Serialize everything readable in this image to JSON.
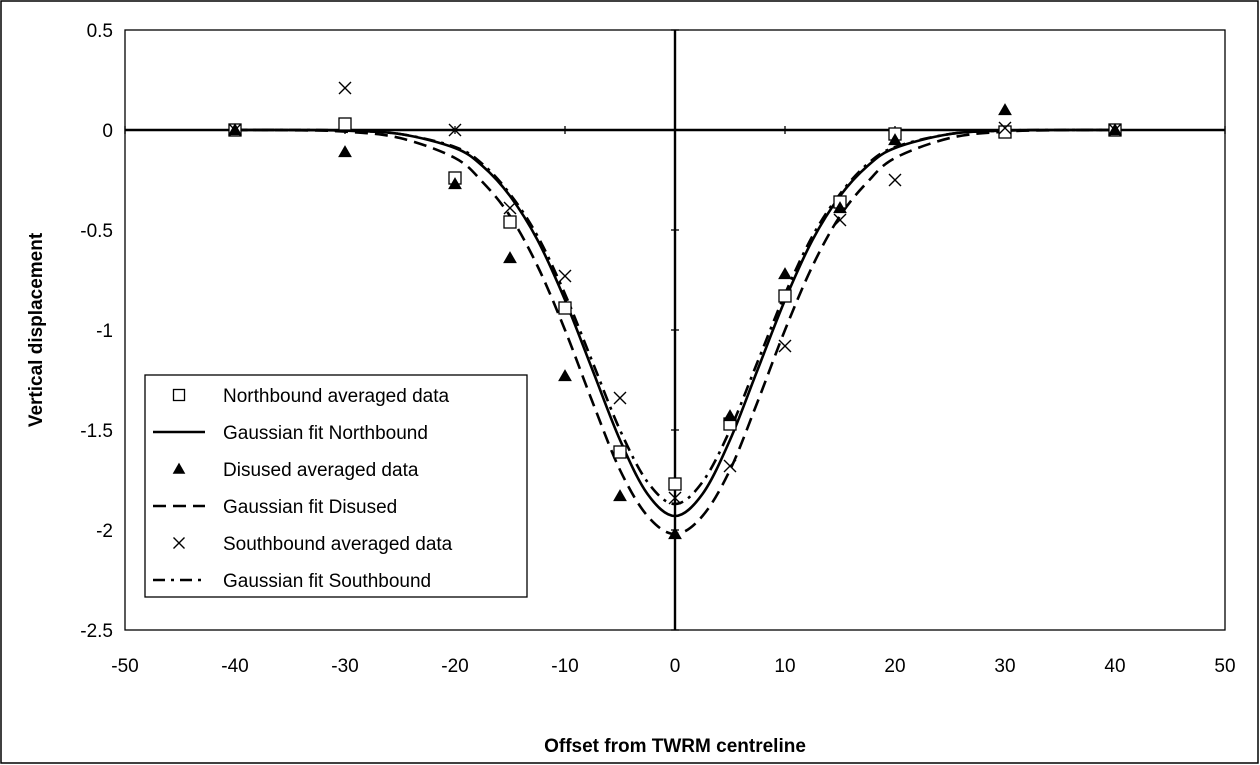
{
  "chart_data": {
    "type": "scatter",
    "title": "",
    "xlabel": "Offset from TWRM centreline",
    "ylabel": "Vertical displacement",
    "xlim": [
      -50,
      50
    ],
    "ylim": [
      -2.5,
      0.5
    ],
    "xticks": [
      -50,
      -40,
      -30,
      -20,
      -10,
      0,
      10,
      20,
      30,
      40,
      50
    ],
    "yticks": [
      0.5,
      0,
      -0.5,
      -1,
      -1.5,
      -2,
      -2.5
    ],
    "xtick_labels": [
      "-50",
      "-40",
      "-30",
      "-20",
      "-10",
      "0",
      "10",
      "20",
      "30",
      "40",
      "50"
    ],
    "ytick_labels": [
      "0.5",
      "0",
      "-0.5",
      "-1",
      "-1.5",
      "-2",
      "-2.5"
    ],
    "grid": false,
    "legend_position": "lower-left",
    "series": [
      {
        "name": "Northbound averaged data",
        "kind": "points",
        "marker": "square-open",
        "x": [
          -40,
          -30,
          -20,
          -15,
          -10,
          -5,
          0,
          5,
          10,
          15,
          20,
          30,
          40
        ],
        "y": [
          0.0,
          0.03,
          -0.24,
          -0.46,
          -0.89,
          -1.61,
          -1.77,
          -1.47,
          -0.83,
          -0.36,
          -0.02,
          -0.01,
          0.0
        ]
      },
      {
        "name": "Gaussian fit Northbound",
        "kind": "line",
        "style": "solid",
        "x": [
          -40,
          -35,
          -30,
          -25,
          -20,
          -17.5,
          -15,
          -12.5,
          -10,
          -7.5,
          -5,
          -2.5,
          0,
          2.5,
          5,
          7.5,
          10,
          12.5,
          15,
          17.5,
          20,
          25,
          30,
          35,
          40
        ],
        "y": [
          0.0,
          0.0,
          -0.003,
          -0.02,
          -0.09,
          -0.18,
          -0.33,
          -0.55,
          -0.85,
          -1.2,
          -1.55,
          -1.82,
          -1.93,
          -1.82,
          -1.55,
          -1.2,
          -0.85,
          -0.55,
          -0.33,
          -0.18,
          -0.09,
          -0.02,
          -0.003,
          0.0,
          0.0
        ]
      },
      {
        "name": "Disused averaged data",
        "kind": "points",
        "marker": "triangle-filled",
        "x": [
          -40,
          -30,
          -20,
          -15,
          -10,
          -5,
          0,
          5,
          10,
          15,
          20,
          30,
          40
        ],
        "y": [
          0.0,
          -0.11,
          -0.27,
          -0.64,
          -1.23,
          -1.83,
          -2.02,
          -1.43,
          -0.72,
          -0.39,
          -0.05,
          0.1,
          0.0
        ]
      },
      {
        "name": "Gaussian fit Disused",
        "kind": "line",
        "style": "dashed",
        "x": [
          -40,
          -35,
          -30,
          -25,
          -20,
          -17.5,
          -15,
          -12.5,
          -10,
          -7.5,
          -5,
          -2.5,
          0,
          2.5,
          5,
          7.5,
          10,
          12.5,
          15,
          17.5,
          20,
          25,
          30,
          35,
          40
        ],
        "y": [
          0.0,
          -0.001,
          -0.008,
          -0.04,
          -0.14,
          -0.26,
          -0.43,
          -0.68,
          -1.0,
          -1.36,
          -1.7,
          -1.93,
          -2.02,
          -1.93,
          -1.7,
          -1.36,
          -1.0,
          -0.68,
          -0.43,
          -0.26,
          -0.14,
          -0.04,
          -0.008,
          -0.001,
          0.0
        ]
      },
      {
        "name": "Southbound averaged data",
        "kind": "points",
        "marker": "x",
        "x": [
          -40,
          -30,
          -20,
          -15,
          -10,
          -5,
          0,
          5,
          10,
          15,
          20,
          30,
          40
        ],
        "y": [
          0.0,
          0.21,
          0.0,
          -0.39,
          -0.73,
          -1.34,
          -1.84,
          -1.68,
          -1.08,
          -0.45,
          -0.25,
          0.01,
          0.0
        ]
      },
      {
        "name": "Gaussian fit Southbound",
        "kind": "line",
        "style": "dash-dot",
        "x": [
          -40,
          -35,
          -30,
          -25,
          -20,
          -17.5,
          -15,
          -12.5,
          -10,
          -7.5,
          -5,
          -2.5,
          0,
          2.5,
          5,
          7.5,
          10,
          12.5,
          15,
          17.5,
          20,
          25,
          30,
          35,
          40
        ],
        "y": [
          0.0,
          0.0,
          -0.003,
          -0.02,
          -0.085,
          -0.17,
          -0.32,
          -0.53,
          -0.82,
          -1.16,
          -1.5,
          -1.76,
          -1.87,
          -1.76,
          -1.5,
          -1.16,
          -0.82,
          -0.53,
          -0.32,
          -0.17,
          -0.085,
          -0.02,
          -0.003,
          0.0,
          0.0
        ]
      }
    ]
  }
}
